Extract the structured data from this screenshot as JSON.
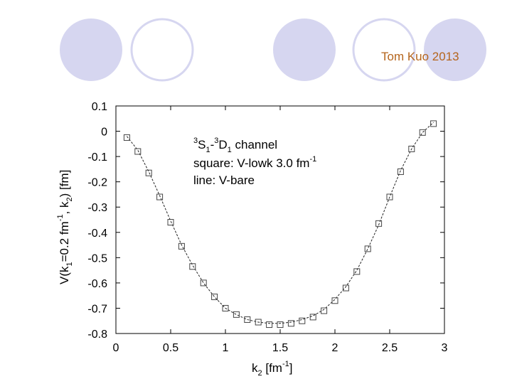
{
  "slide": {
    "author_label": "Tom Kuo 2013",
    "accent_color": "#d6d6f0",
    "author_color": "#b5651d"
  },
  "chart_data": {
    "type": "line",
    "title": "",
    "xlim": [
      0,
      3
    ],
    "ylim": [
      -0.8,
      0.1
    ],
    "x_ticks": [
      "0",
      "0.5",
      "1",
      "1.5",
      "2",
      "2.5",
      "3"
    ],
    "x_tick_values": [
      0,
      0.5,
      1,
      1.5,
      2,
      2.5,
      3
    ],
    "y_ticks": [
      "0.1",
      "0",
      "-0.1",
      "-0.2",
      "-0.3",
      "-0.4",
      "-0.5",
      "-0.6",
      "-0.7",
      "-0.8"
    ],
    "y_tick_values": [
      0.1,
      0,
      -0.1,
      -0.2,
      -0.3,
      -0.4,
      -0.5,
      -0.6,
      -0.7,
      -0.8
    ],
    "xlabel": {
      "main": "k",
      "sub": "2",
      "rest": "  [fm",
      "sup": "-1",
      "end": "]"
    },
    "ylabel": {
      "p1": "V(k",
      "s1": "1",
      "p2": "=0.2 fm",
      "sup": "-1",
      "p3": ", k",
      "s2": "2",
      "p4": ")  [fm]"
    },
    "legend": {
      "line1": {
        "sup1": "3",
        "t1": "S",
        "sub1": "1",
        "t2": "-",
        "sup2": "3",
        "t3": "D",
        "sub2": "1",
        "t4": " channel"
      },
      "line2": {
        "t1": "square: V-lowk 3.0 fm",
        "sup": "-1"
      },
      "line3": {
        "t1": "line: V-bare"
      }
    },
    "series": [
      {
        "name": "V-bare",
        "style": "dashed-line",
        "x": [
          0.1,
          0.2,
          0.3,
          0.4,
          0.5,
          0.6,
          0.7,
          0.8,
          0.9,
          1.0,
          1.1,
          1.2,
          1.3,
          1.4,
          1.5,
          1.6,
          1.7,
          1.8,
          1.9,
          2.0,
          2.1,
          2.2,
          2.3,
          2.4,
          2.5,
          2.6,
          2.7,
          2.8,
          2.9
        ],
        "values": [
          -0.02,
          -0.075,
          -0.16,
          -0.255,
          -0.355,
          -0.45,
          -0.53,
          -0.6,
          -0.655,
          -0.7,
          -0.725,
          -0.745,
          -0.755,
          -0.76,
          -0.76,
          -0.755,
          -0.745,
          -0.73,
          -0.705,
          -0.665,
          -0.615,
          -0.55,
          -0.465,
          -0.37,
          -0.26,
          -0.155,
          -0.07,
          -0.005,
          0.035
        ]
      },
      {
        "name": "V-lowk 3.0",
        "style": "square-markers",
        "x": [
          0.1,
          0.2,
          0.3,
          0.4,
          0.5,
          0.6,
          0.7,
          0.8,
          0.9,
          1.0,
          1.1,
          1.2,
          1.3,
          1.4,
          1.5,
          1.6,
          1.7,
          1.8,
          1.9,
          2.0,
          2.1,
          2.2,
          2.3,
          2.4,
          2.5,
          2.6,
          2.7,
          2.8,
          2.9
        ],
        "values": [
          -0.025,
          -0.08,
          -0.165,
          -0.26,
          -0.36,
          -0.455,
          -0.535,
          -0.6,
          -0.655,
          -0.7,
          -0.725,
          -0.745,
          -0.755,
          -0.765,
          -0.765,
          -0.76,
          -0.75,
          -0.735,
          -0.71,
          -0.67,
          -0.62,
          -0.555,
          -0.465,
          -0.365,
          -0.26,
          -0.16,
          -0.07,
          -0.005,
          0.03
        ]
      }
    ]
  }
}
